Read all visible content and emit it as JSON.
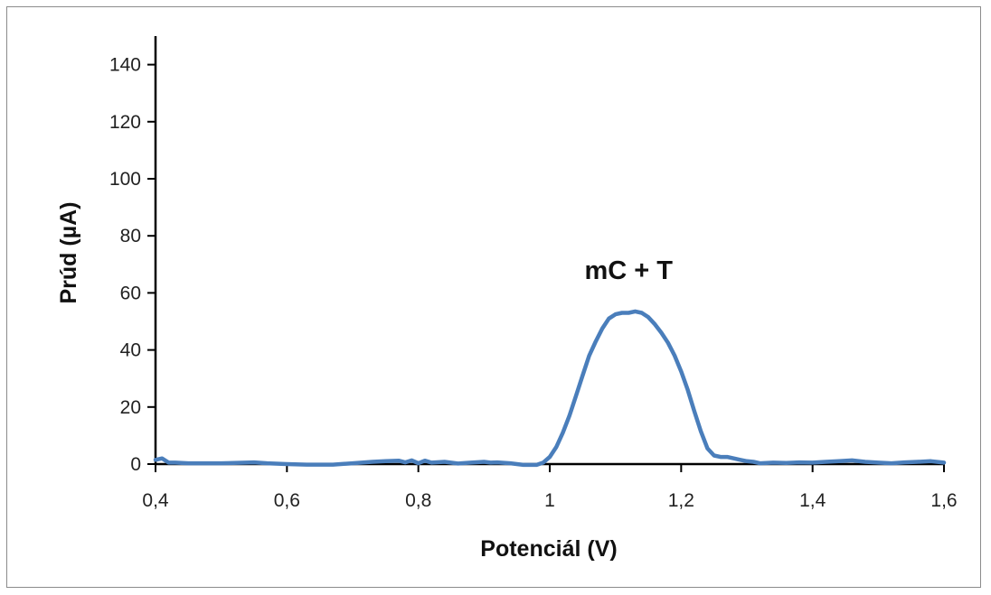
{
  "chart_data": {
    "type": "line",
    "title": "",
    "xlabel": "Potenciál (V)",
    "ylabel": "Prúd (µA)",
    "xlim": [
      0.4,
      1.6
    ],
    "ylim": [
      0,
      150
    ],
    "x_ticks": [
      0.4,
      0.6,
      0.8,
      1.0,
      1.2,
      1.4,
      1.6
    ],
    "x_tick_labels": [
      "0,4",
      "0,6",
      "0,8",
      "1",
      "1,2",
      "1,4",
      "1,6"
    ],
    "y_ticks": [
      0,
      20,
      40,
      60,
      80,
      100,
      120,
      140
    ],
    "y_tick_labels": [
      "0",
      "20",
      "40",
      "60",
      "80",
      "100",
      "120",
      "140"
    ],
    "grid": false,
    "legend": "none",
    "annotation": {
      "text": "mC + T",
      "x": 1.12,
      "y": 68
    },
    "series": [
      {
        "color": "#4a7ebb",
        "x": [
          0.4,
          0.41,
          0.42,
          0.43,
          0.45,
          0.5,
          0.55,
          0.57,
          0.6,
          0.63,
          0.67,
          0.7,
          0.73,
          0.75,
          0.77,
          0.78,
          0.79,
          0.8,
          0.81,
          0.82,
          0.84,
          0.86,
          0.88,
          0.9,
          0.91,
          0.92,
          0.94,
          0.96,
          0.98,
          0.99,
          1.0,
          1.01,
          1.02,
          1.03,
          1.04,
          1.05,
          1.06,
          1.07,
          1.08,
          1.09,
          1.1,
          1.11,
          1.12,
          1.13,
          1.14,
          1.15,
          1.16,
          1.17,
          1.18,
          1.19,
          1.2,
          1.21,
          1.22,
          1.23,
          1.24,
          1.25,
          1.26,
          1.27,
          1.28,
          1.29,
          1.3,
          1.31,
          1.32,
          1.34,
          1.36,
          1.38,
          1.4,
          1.42,
          1.44,
          1.46,
          1.48,
          1.5,
          1.52,
          1.54,
          1.56,
          1.58,
          1.6
        ],
        "y": [
          1.5,
          2.0,
          0.5,
          0.5,
          0.3,
          0.3,
          0.6,
          0.3,
          0.0,
          -0.2,
          -0.2,
          0.3,
          0.8,
          1.0,
          1.2,
          0.6,
          1.3,
          0.3,
          1.2,
          0.5,
          0.8,
          0.2,
          0.5,
          0.8,
          0.5,
          0.6,
          0.3,
          -0.3,
          -0.3,
          0.5,
          2.5,
          6.0,
          11.0,
          17.0,
          24.0,
          31.0,
          38.0,
          43.0,
          47.5,
          51.0,
          52.5,
          53.0,
          53.0,
          53.5,
          53.0,
          51.5,
          49.0,
          46.0,
          42.5,
          38.0,
          32.5,
          26.0,
          18.5,
          11.5,
          5.5,
          3.0,
          2.5,
          2.5,
          2.0,
          1.5,
          1.0,
          0.8,
          0.3,
          0.5,
          0.4,
          0.6,
          0.5,
          0.8,
          1.0,
          1.3,
          0.8,
          0.5,
          0.3,
          0.6,
          0.8,
          1.0,
          0.5
        ]
      }
    ]
  }
}
